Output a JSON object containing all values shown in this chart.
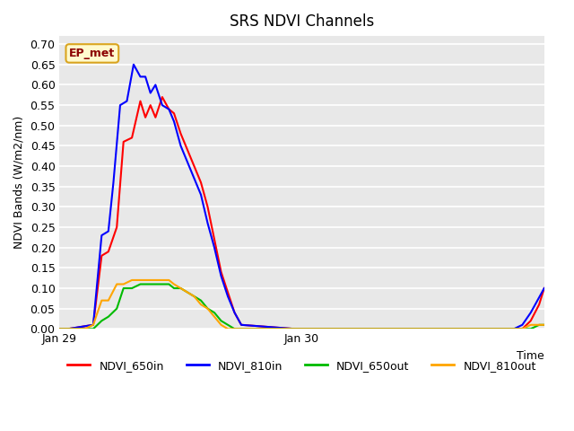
{
  "title": "SRS NDVI Channels",
  "ylabel": "NDVI Bands (W/m2/nm)",
  "xlabel": "Time",
  "ylim": [
    0.0,
    0.72
  ],
  "yticks": [
    0.0,
    0.05,
    0.1,
    0.15,
    0.2,
    0.25,
    0.3,
    0.35,
    0.4,
    0.45,
    0.5,
    0.55,
    0.6,
    0.65,
    0.7
  ],
  "annotation_text": "EP_met",
  "annotation_color": "#8B0000",
  "annotation_bg": "#FFFACD",
  "annotation_border": "#DAA520",
  "background_color": "#E8E8E8",
  "grid_color": "#FFFFFF",
  "line_colors": {
    "NDVI_650in": "#FF0000",
    "NDVI_810in": "#0000FF",
    "NDVI_650out": "#00BB00",
    "NDVI_810out": "#FFA500"
  },
  "legend_labels": [
    "NDVI_650in",
    "NDVI_810in",
    "NDVI_650out",
    "NDVI_810out"
  ],
  "xtick_labels": [
    "Jan 29",
    "Jan 30"
  ],
  "xtick_positions": [
    0.0,
    1440.0
  ],
  "total_minutes": 2880,
  "series": {
    "NDVI_650in": {
      "x": [
        0,
        50,
        200,
        250,
        290,
        340,
        380,
        430,
        480,
        510,
        540,
        570,
        610,
        650,
        680,
        720,
        760,
        800,
        840,
        880,
        920,
        960,
        1000,
        1040,
        1080,
        1400,
        1440,
        2700,
        2750,
        2800,
        2850,
        2880
      ],
      "y": [
        0.0,
        0.0,
        0.01,
        0.18,
        0.19,
        0.25,
        0.46,
        0.47,
        0.56,
        0.52,
        0.55,
        0.52,
        0.57,
        0.54,
        0.53,
        0.48,
        0.44,
        0.4,
        0.36,
        0.3,
        0.22,
        0.14,
        0.09,
        0.04,
        0.01,
        0.0,
        0.0,
        0.0,
        0.0,
        0.02,
        0.06,
        0.1
      ]
    },
    "NDVI_810in": {
      "x": [
        0,
        50,
        200,
        250,
        290,
        320,
        360,
        400,
        440,
        480,
        510,
        540,
        570,
        610,
        650,
        680,
        720,
        760,
        800,
        840,
        880,
        920,
        960,
        1000,
        1040,
        1080,
        1400,
        1440,
        2700,
        2750,
        2800,
        2880
      ],
      "y": [
        0.0,
        0.0,
        0.01,
        0.23,
        0.24,
        0.36,
        0.55,
        0.56,
        0.65,
        0.62,
        0.62,
        0.58,
        0.6,
        0.55,
        0.54,
        0.51,
        0.45,
        0.41,
        0.37,
        0.33,
        0.26,
        0.2,
        0.13,
        0.08,
        0.04,
        0.01,
        0.0,
        0.0,
        0.0,
        0.01,
        0.04,
        0.1
      ]
    },
    "NDVI_650out": {
      "x": [
        0,
        50,
        200,
        250,
        290,
        340,
        380,
        430,
        480,
        510,
        540,
        570,
        610,
        650,
        680,
        720,
        760,
        800,
        840,
        880,
        920,
        960,
        1000,
        1040,
        1080,
        1400,
        1440,
        2700,
        2750,
        2800,
        2850,
        2880
      ],
      "y": [
        0.0,
        0.0,
        0.0,
        0.02,
        0.03,
        0.05,
        0.1,
        0.1,
        0.11,
        0.11,
        0.11,
        0.11,
        0.11,
        0.11,
        0.1,
        0.1,
        0.09,
        0.08,
        0.07,
        0.05,
        0.04,
        0.02,
        0.01,
        0.0,
        0.0,
        0.0,
        0.0,
        0.0,
        0.0,
        0.0,
        0.01,
        0.01
      ]
    },
    "NDVI_810out": {
      "x": [
        0,
        50,
        150,
        200,
        250,
        290,
        340,
        380,
        430,
        480,
        510,
        540,
        570,
        610,
        650,
        680,
        720,
        760,
        800,
        840,
        880,
        920,
        960,
        1000,
        1040,
        1080,
        1400,
        1440,
        2700,
        2750,
        2800,
        2880
      ],
      "y": [
        0.0,
        0.0,
        0.0,
        0.01,
        0.07,
        0.07,
        0.11,
        0.11,
        0.12,
        0.12,
        0.12,
        0.12,
        0.12,
        0.12,
        0.12,
        0.11,
        0.1,
        0.09,
        0.08,
        0.06,
        0.05,
        0.03,
        0.01,
        0.0,
        0.0,
        0.0,
        0.0,
        0.0,
        0.0,
        0.0,
        0.01,
        0.01
      ]
    }
  }
}
